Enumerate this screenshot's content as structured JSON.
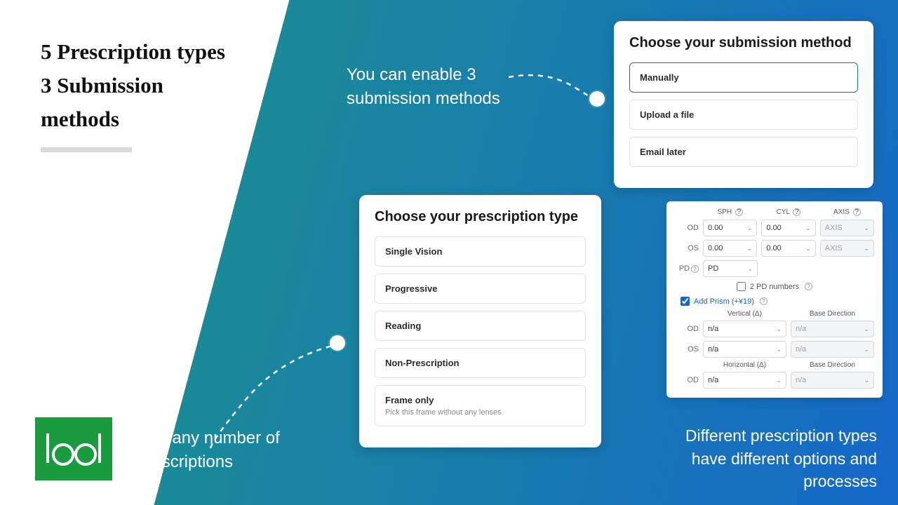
{
  "headline": {
    "line1": "5 Prescription types",
    "line2": "3 Submission",
    "line3": "methods"
  },
  "callouts": {
    "top": "You can enable 3 submission methods",
    "left": "Add any number of prescriptions",
    "right": "Different prescription types have different options and processes"
  },
  "submission_card": {
    "title": "Choose your submission method",
    "options": [
      "Manually",
      "Upload a file",
      "Email later"
    ],
    "selected_index": 0
  },
  "rx_card": {
    "title": "Choose your prescription type",
    "options": [
      {
        "label": "Single Vision"
      },
      {
        "label": "Progressive"
      },
      {
        "label": "Reading"
      },
      {
        "label": "Non-Prescription"
      },
      {
        "label": "Frame only",
        "sub": "Pick this frame without any lenses"
      }
    ]
  },
  "rx_form": {
    "col_headers": [
      "SPH",
      "CYL",
      "AXIS"
    ],
    "rows": [
      {
        "label": "OD",
        "cells": [
          {
            "v": "0.00"
          },
          {
            "v": "0.00"
          },
          {
            "v": "AXIS",
            "dim": true
          }
        ]
      },
      {
        "label": "OS",
        "cells": [
          {
            "v": "0.00"
          },
          {
            "v": "0.00"
          },
          {
            "v": "AXIS",
            "dim": true
          }
        ]
      }
    ],
    "pd_label": "PD",
    "pd_value": "PD",
    "two_pd_label": "2 PD numbers",
    "prism_label": "Add Prism (+¥19)",
    "prism_checked": true,
    "vert_header": [
      "Vertical (Δ)",
      "Base Direction"
    ],
    "vert_rows": [
      {
        "label": "OD",
        "cells": [
          {
            "v": "n/a"
          },
          {
            "v": "n/a",
            "dim": true
          }
        ]
      },
      {
        "label": "OS",
        "cells": [
          {
            "v": "n/a"
          },
          {
            "v": "n/a",
            "dim": true
          }
        ]
      }
    ],
    "horiz_header": [
      "Horizontal (Δ)",
      "Base Direction"
    ],
    "horiz_rows": [
      {
        "label": "OD",
        "cells": [
          {
            "v": "n/a"
          },
          {
            "v": "n/a",
            "dim": true
          }
        ]
      }
    ]
  },
  "colors": {
    "accent": "#1668c9",
    "logo_bg": "#1a9c3e"
  }
}
